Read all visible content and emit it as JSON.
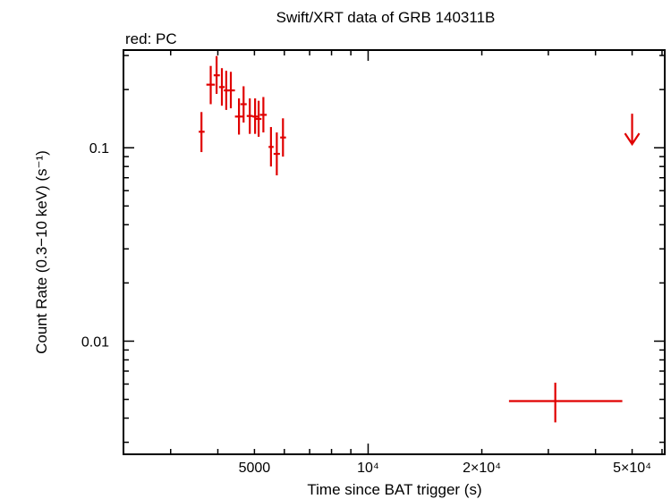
{
  "chart_data": {
    "type": "scatter",
    "title": "Swift/XRT data of GRB 140311B",
    "subtitle": "red: PC",
    "xlabel": "Time since BAT trigger (s)",
    "ylabel": "Count Rate (0.3−10 keV) (s⁻¹)",
    "xscale": "log",
    "yscale": "log",
    "xlim": [
      2250,
      61000
    ],
    "ylim": [
      0.0026,
      0.32
    ],
    "x_ticks": [
      {
        "value": 5000,
        "label": "5000"
      },
      {
        "value": 10000,
        "label": "10⁴"
      },
      {
        "value": 20000,
        "label": "2×10⁴"
      },
      {
        "value": 50000,
        "label": "5×10⁴"
      }
    ],
    "y_ticks": [
      {
        "value": 0.1,
        "label": "0.1"
      },
      {
        "value": 0.01,
        "label": "0.01"
      }
    ],
    "color": "#e00000",
    "series": [
      {
        "name": "PC",
        "points": [
          {
            "x": 3620,
            "xerr": [
              3560,
              3690
            ],
            "y": 0.121,
            "yerr": [
              0.095,
              0.153
            ]
          },
          {
            "x": 3830,
            "xerr": [
              3730,
              3930
            ],
            "y": 0.212,
            "yerr": [
              0.168,
              0.265
            ]
          },
          {
            "x": 3970,
            "xerr": [
              3900,
              4050
            ],
            "y": 0.237,
            "yerr": [
              0.19,
              0.298
            ]
          },
          {
            "x": 4100,
            "xerr": [
              4030,
              4170
            ],
            "y": 0.206,
            "yerr": [
              0.165,
              0.258
            ]
          },
          {
            "x": 4210,
            "xerr": [
              4150,
              4280
            ],
            "y": 0.198,
            "yerr": [
              0.157,
              0.25
            ]
          },
          {
            "x": 4330,
            "xerr": [
              4230,
              4440
            ],
            "y": 0.198,
            "yerr": [
              0.16,
              0.247
            ]
          },
          {
            "x": 4550,
            "xerr": [
              4440,
              4660
            ],
            "y": 0.145,
            "yerr": [
              0.117,
              0.18
            ]
          },
          {
            "x": 4680,
            "xerr": [
              4590,
              4770
            ],
            "y": 0.168,
            "yerr": [
              0.135,
              0.208
            ]
          },
          {
            "x": 4860,
            "xerr": [
              4770,
              4950
            ],
            "y": 0.146,
            "yerr": [
              0.118,
              0.18
            ]
          },
          {
            "x": 5020,
            "xerr": [
              4940,
              5110
            ],
            "y": 0.145,
            "yerr": [
              0.118,
              0.18
            ]
          },
          {
            "x": 5130,
            "xerr": [
              5040,
              5220
            ],
            "y": 0.141,
            "yerr": [
              0.114,
              0.175
            ]
          },
          {
            "x": 5280,
            "xerr": [
              5170,
              5390
            ],
            "y": 0.148,
            "yerr": [
              0.12,
              0.183
            ]
          },
          {
            "x": 5530,
            "xerr": [
              5450,
              5620
            ],
            "y": 0.101,
            "yerr": [
              0.08,
              0.128
            ]
          },
          {
            "x": 5730,
            "xerr": [
              5620,
              5840
            ],
            "y": 0.093,
            "yerr": [
              0.072,
              0.12
            ]
          },
          {
            "x": 5950,
            "xerr": [
              5850,
              6060
            ],
            "y": 0.113,
            "yerr": [
              0.09,
              0.142
            ]
          },
          {
            "x": 31300,
            "xerr": [
              23600,
              47100
            ],
            "y": 0.0049,
            "yerr": [
              0.0038,
              0.0061
            ]
          }
        ],
        "upper_limits": [
          {
            "x": 50000,
            "y": 0.15
          }
        ]
      }
    ]
  }
}
